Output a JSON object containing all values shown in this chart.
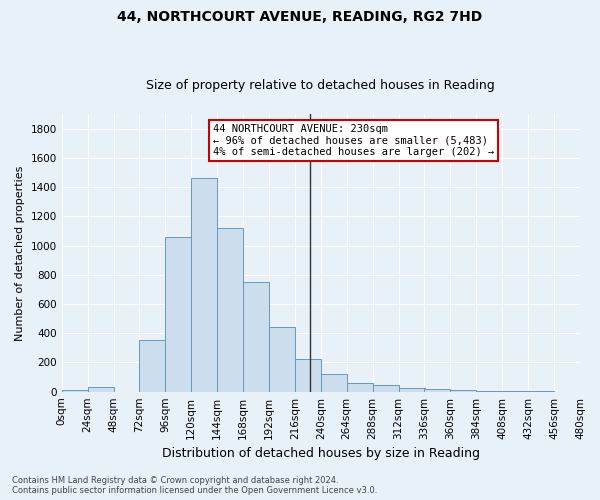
{
  "title": "44, NORTHCOURT AVENUE, READING, RG2 7HD",
  "subtitle": "Size of property relative to detached houses in Reading",
  "xlabel": "Distribution of detached houses by size in Reading",
  "ylabel": "Number of detached properties",
  "bar_color": "#ccdded",
  "bar_edge_color": "#6699bb",
  "annotation_line_color": "#333333",
  "annotation_property_sqm": 230,
  "annotation_text_line1": "44 NORTHCOURT AVENUE: 230sqm",
  "annotation_text_line2": "← 96% of detached houses are smaller (5,483)",
  "annotation_text_line3": "4% of semi-detached houses are larger (202) →",
  "annotation_box_color": "#ffffff",
  "annotation_box_edge_color": "#cc0000",
  "footnote1": "Contains HM Land Registry data © Crown copyright and database right 2024.",
  "footnote2": "Contains public sector information licensed under the Open Government Licence v3.0.",
  "bin_edges": [
    0,
    24,
    48,
    72,
    96,
    120,
    144,
    168,
    192,
    216,
    240,
    264,
    288,
    312,
    336,
    360,
    384,
    408,
    432,
    456,
    480
  ],
  "bin_labels": [
    "0sqm",
    "24sqm",
    "48sqm",
    "72sqm",
    "96sqm",
    "120sqm",
    "144sqm",
    "168sqm",
    "192sqm",
    "216sqm",
    "240sqm",
    "264sqm",
    "288sqm",
    "312sqm",
    "336sqm",
    "360sqm",
    "384sqm",
    "408sqm",
    "432sqm",
    "456sqm",
    "480sqm"
  ],
  "counts": [
    10,
    35,
    0,
    355,
    1060,
    1465,
    1120,
    750,
    440,
    225,
    120,
    60,
    45,
    25,
    18,
    10,
    5,
    3,
    2,
    1
  ],
  "ylim": [
    0,
    1900
  ],
  "yticks": [
    0,
    200,
    400,
    600,
    800,
    1000,
    1200,
    1400,
    1600,
    1800
  ],
  "background_color": "#e8f0f8",
  "grid_color": "#ffffff",
  "title_fontsize": 10,
  "subtitle_fontsize": 9,
  "ylabel_fontsize": 8,
  "xlabel_fontsize": 9,
  "tick_fontsize": 7.5,
  "annot_fontsize": 7.5,
  "footnote_fontsize": 6
}
